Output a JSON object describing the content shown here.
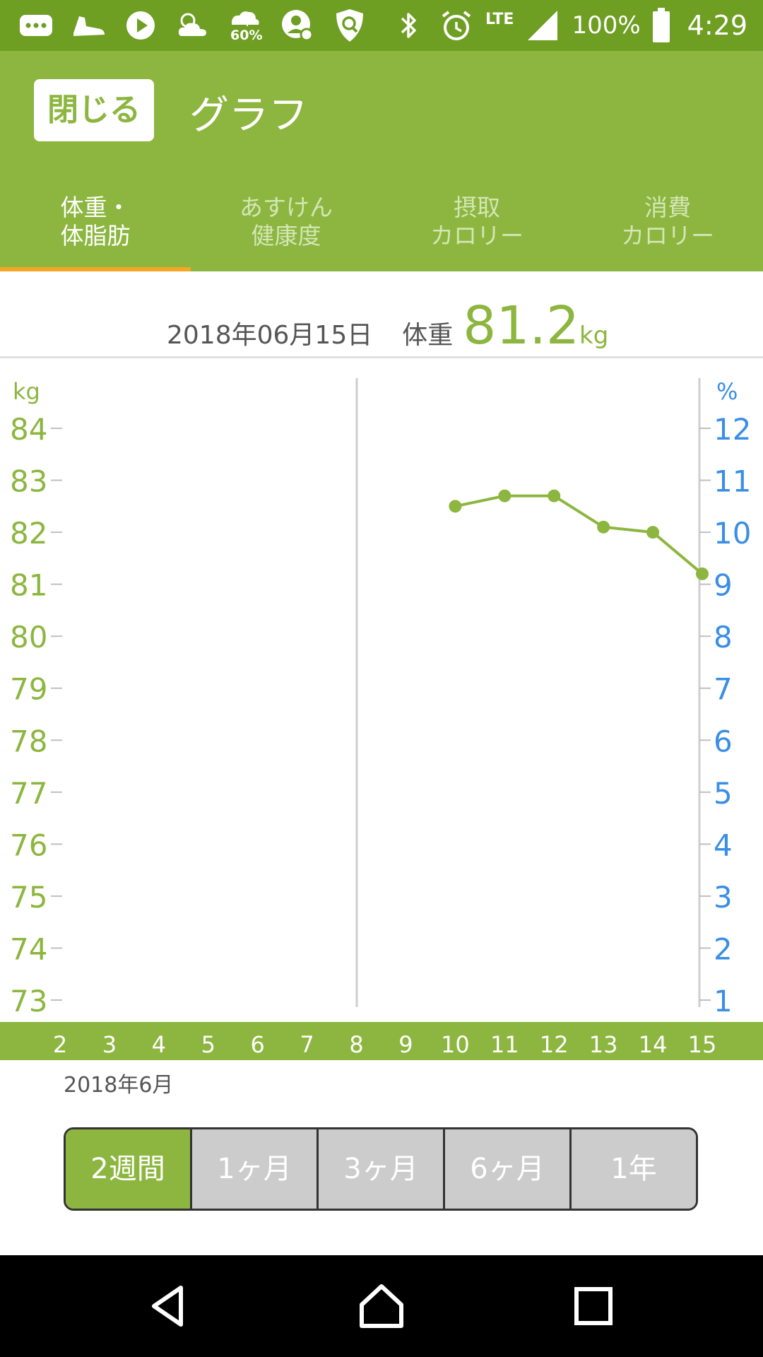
{
  "status_bar": {
    "left_icons": [
      "message-icon",
      "shoe-icon",
      "play-icon",
      "weather-icon",
      "rain-umbrella-icon",
      "person-icon",
      "shield-icon"
    ],
    "rain_percent": "60%",
    "network": "LTE",
    "battery": "100%",
    "time": "4:29"
  },
  "header": {
    "close_label": "閉じる",
    "title": "グラフ",
    "tabs": [
      {
        "label": "体重・\n体脂肪",
        "active": true
      },
      {
        "label": "あすけん\n健康度",
        "active": false
      },
      {
        "label": "摂取\nカロリー",
        "active": false
      },
      {
        "label": "消費\nカロリー",
        "active": false
      }
    ]
  },
  "summary": {
    "date": "2018年06月15日",
    "label": "体重",
    "value": "81.2",
    "unit": "kg"
  },
  "chart_data": {
    "type": "line",
    "left_axis_label": "kg",
    "right_axis_label": "%",
    "y_left_ticks": [
      "84",
      "83",
      "82",
      "81",
      "80",
      "79",
      "78",
      "77",
      "76",
      "75",
      "74",
      "73"
    ],
    "y_right_ticks": [
      "12",
      "11",
      "10",
      "9",
      "8",
      "7",
      "6",
      "5",
      "4",
      "3",
      "2",
      "1"
    ],
    "ylim": [
      73,
      84
    ],
    "x_ticks": [
      "2",
      "3",
      "4",
      "5",
      "6",
      "7",
      "8",
      "9",
      "10",
      "11",
      "12",
      "13",
      "14",
      "15"
    ],
    "series": [
      {
        "x": [
          10,
          11,
          12,
          13,
          14,
          15
        ],
        "values": [
          82.5,
          82.7,
          82.7,
          82.1,
          82.0,
          81.2
        ]
      }
    ],
    "colors": {
      "line": "#8cb63f",
      "left_axis": "#8cb63f",
      "right_axis": "#3a8ee6",
      "x_band": "#8cb63f"
    }
  },
  "range_label": "2018年6月",
  "period_options": [
    {
      "label": "2週間",
      "active": true
    },
    {
      "label": "1ヶ月",
      "active": false
    },
    {
      "label": "3ヶ月",
      "active": false
    },
    {
      "label": "6ヶ月",
      "active": false
    },
    {
      "label": "1年",
      "active": false
    }
  ]
}
